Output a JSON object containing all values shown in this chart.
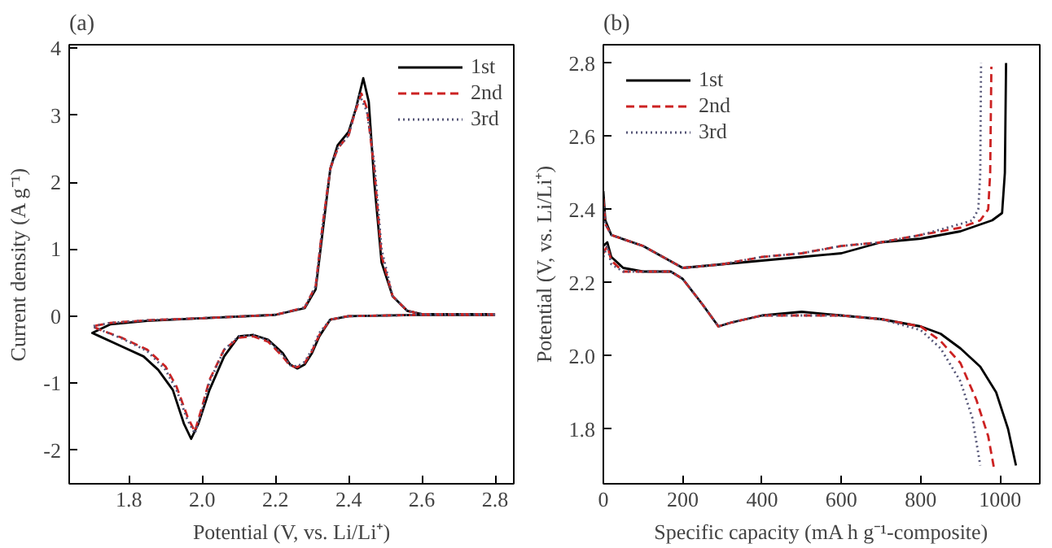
{
  "chart_data": [
    {
      "type": "line",
      "title": "(a)",
      "xlabel": "Potential (V, vs. Li/Li⁺)",
      "ylabel": "Current density (A g⁻¹)",
      "xlim": [
        1.637,
        2.851
      ],
      "ylim": [
        -2.5,
        4.05
      ],
      "xticks": [
        1.8,
        {
          "value": 2,
          "label": "2.0"
        },
        2.2,
        2.4,
        2.6,
        2.8
      ],
      "yticks": [
        -2,
        -1,
        0,
        1,
        2,
        3,
        4
      ],
      "grid": false,
      "legend": "top right",
      "series": [
        {
          "name": "1st",
          "color": "#000000",
          "line_style": "solid",
          "x": [
            2.8,
            2.6,
            2.4,
            2.35,
            2.32,
            2.3,
            2.28,
            2.26,
            2.24,
            2.22,
            2.18,
            2.14,
            2.1,
            2.06,
            2.02,
            1.99,
            1.97,
            1.95,
            1.92,
            1.88,
            1.84,
            1.78,
            1.72,
            1.7,
            1.75,
            1.85,
            2.0,
            2.2,
            2.28,
            2.31,
            2.33,
            2.35,
            2.37,
            2.4,
            2.42,
            2.44,
            2.455,
            2.47,
            2.49,
            2.52,
            2.56,
            2.6,
            2.8
          ],
          "values": [
            0.02,
            0.02,
            0.0,
            -0.05,
            -0.3,
            -0.55,
            -0.72,
            -0.78,
            -0.72,
            -0.55,
            -0.35,
            -0.28,
            -0.3,
            -0.6,
            -1.1,
            -1.6,
            -1.83,
            -1.6,
            -1.1,
            -0.8,
            -0.6,
            -0.45,
            -0.3,
            -0.25,
            -0.12,
            -0.07,
            -0.03,
            0.02,
            0.12,
            0.4,
            1.3,
            2.2,
            2.55,
            2.75,
            3.1,
            3.55,
            3.2,
            2.0,
            0.8,
            0.3,
            0.08,
            0.03,
            0.03
          ]
        },
        {
          "name": "2nd",
          "color": "#cc2222",
          "line_style": "dashed",
          "x": [
            2.8,
            2.6,
            2.4,
            2.35,
            2.32,
            2.3,
            2.28,
            2.26,
            2.24,
            2.22,
            2.18,
            2.14,
            2.1,
            2.06,
            2.02,
            2.0,
            1.98,
            1.96,
            1.93,
            1.9,
            1.85,
            1.78,
            1.72,
            1.7,
            1.75,
            1.85,
            2.0,
            2.2,
            2.28,
            2.31,
            2.33,
            2.35,
            2.37,
            2.4,
            2.415,
            2.435,
            2.45,
            2.47,
            2.49,
            2.52,
            2.56,
            2.6,
            2.8
          ],
          "values": [
            0.02,
            0.02,
            0.0,
            -0.05,
            -0.28,
            -0.52,
            -0.7,
            -0.76,
            -0.74,
            -0.6,
            -0.38,
            -0.3,
            -0.32,
            -0.5,
            -0.95,
            -1.35,
            -1.72,
            -1.5,
            -1.05,
            -0.75,
            -0.5,
            -0.32,
            -0.2,
            -0.15,
            -0.1,
            -0.06,
            -0.03,
            0.02,
            0.13,
            0.45,
            1.4,
            2.2,
            2.5,
            2.7,
            3.0,
            3.32,
            3.1,
            2.2,
            0.9,
            0.3,
            0.08,
            0.03,
            0.03
          ]
        },
        {
          "name": "3rd",
          "color": "#555577",
          "line_style": "dotted",
          "x": [
            2.8,
            2.6,
            2.4,
            2.35,
            2.32,
            2.3,
            2.28,
            2.26,
            2.24,
            2.22,
            2.18,
            2.14,
            2.1,
            2.06,
            2.02,
            2.0,
            1.98,
            1.96,
            1.93,
            1.9,
            1.85,
            1.78,
            1.72,
            1.7,
            1.75,
            1.85,
            2.0,
            2.2,
            2.28,
            2.31,
            2.33,
            2.35,
            2.37,
            2.4,
            2.415,
            2.43,
            2.45,
            2.47,
            2.49,
            2.52,
            2.56,
            2.6,
            2.8
          ],
          "values": [
            0.02,
            0.02,
            0.0,
            -0.05,
            -0.25,
            -0.5,
            -0.68,
            -0.75,
            -0.73,
            -0.58,
            -0.36,
            -0.28,
            -0.3,
            -0.5,
            -0.98,
            -1.4,
            -1.75,
            -1.55,
            -1.1,
            -0.8,
            -0.52,
            -0.33,
            -0.2,
            -0.15,
            -0.1,
            -0.06,
            -0.03,
            0.02,
            0.13,
            0.45,
            1.4,
            2.2,
            2.5,
            2.7,
            3.0,
            3.3,
            3.05,
            2.3,
            1.0,
            0.3,
            0.08,
            0.03,
            0.03
          ]
        }
      ]
    },
    {
      "type": "line",
      "title": "(b)",
      "xlabel": "Specific capacity (mA h g⁻¹-composite)",
      "ylabel": "Potential (V, vs. Li/Li⁺)",
      "xlim": [
        0,
        1100
      ],
      "ylim": [
        1.65,
        2.85
      ],
      "xticks": [
        0,
        200,
        400,
        600,
        800,
        1000
      ],
      "yticks": [
        1.8,
        {
          "value": 2,
          "label": "2.0"
        },
        2.2,
        2.4,
        2.6,
        2.8
      ],
      "grid": false,
      "legend": "top left",
      "series": [
        {
          "name": "1st",
          "color": "#000000",
          "line_style": "solid",
          "x": [
            0,
            10,
            20,
            50,
            100,
            170,
            200,
            250,
            290,
            320,
            400,
            500,
            600,
            700,
            800,
            850,
            900,
            950,
            990,
            1020,
            1040,
            null,
            0,
            5,
            20,
            100,
            150,
            200,
            300,
            400,
            500,
            600,
            700,
            800,
            900,
            980,
            1005,
            1012,
            1015
          ],
          "values": [
            2.3,
            2.31,
            2.27,
            2.24,
            2.23,
            2.23,
            2.21,
            2.14,
            2.08,
            2.09,
            2.11,
            2.12,
            2.11,
            2.1,
            2.08,
            2.06,
            2.02,
            1.97,
            1.9,
            1.8,
            1.7,
            null,
            2.45,
            2.37,
            2.33,
            2.3,
            2.27,
            2.24,
            2.25,
            2.26,
            2.27,
            2.28,
            2.31,
            2.32,
            2.34,
            2.37,
            2.39,
            2.5,
            2.8
          ]
        },
        {
          "name": "2nd",
          "color": "#cc2222",
          "line_style": "dashed",
          "x": [
            0,
            10,
            20,
            50,
            100,
            170,
            200,
            250,
            290,
            320,
            400,
            500,
            600,
            700,
            800,
            850,
            900,
            940,
            970,
            985,
            null,
            0,
            5,
            20,
            100,
            150,
            200,
            300,
            400,
            500,
            600,
            700,
            800,
            900,
            950,
            970,
            975,
            978
          ],
          "values": [
            2.28,
            2.3,
            2.26,
            2.23,
            2.23,
            2.23,
            2.21,
            2.14,
            2.08,
            2.09,
            2.11,
            2.11,
            2.11,
            2.1,
            2.08,
            2.04,
            1.98,
            1.88,
            1.78,
            1.69,
            null,
            2.43,
            2.36,
            2.33,
            2.3,
            2.27,
            2.24,
            2.25,
            2.27,
            2.28,
            2.3,
            2.31,
            2.33,
            2.35,
            2.37,
            2.4,
            2.5,
            2.79
          ]
        },
        {
          "name": "3rd",
          "color": "#555577",
          "line_style": "dotted",
          "x": [
            0,
            10,
            20,
            50,
            100,
            170,
            200,
            250,
            290,
            320,
            400,
            500,
            600,
            700,
            800,
            850,
            900,
            930,
            950,
            null,
            0,
            5,
            20,
            100,
            150,
            200,
            300,
            400,
            500,
            600,
            700,
            800,
            900,
            930,
            945,
            950,
            952
          ],
          "values": [
            2.27,
            2.3,
            2.25,
            2.23,
            2.23,
            2.23,
            2.21,
            2.14,
            2.08,
            2.09,
            2.11,
            2.11,
            2.11,
            2.1,
            2.07,
            2.02,
            1.93,
            1.83,
            1.7,
            null,
            2.42,
            2.36,
            2.33,
            2.3,
            2.27,
            2.24,
            2.25,
            2.27,
            2.28,
            2.3,
            2.31,
            2.33,
            2.36,
            2.37,
            2.4,
            2.5,
            2.8
          ]
        }
      ]
    }
  ]
}
